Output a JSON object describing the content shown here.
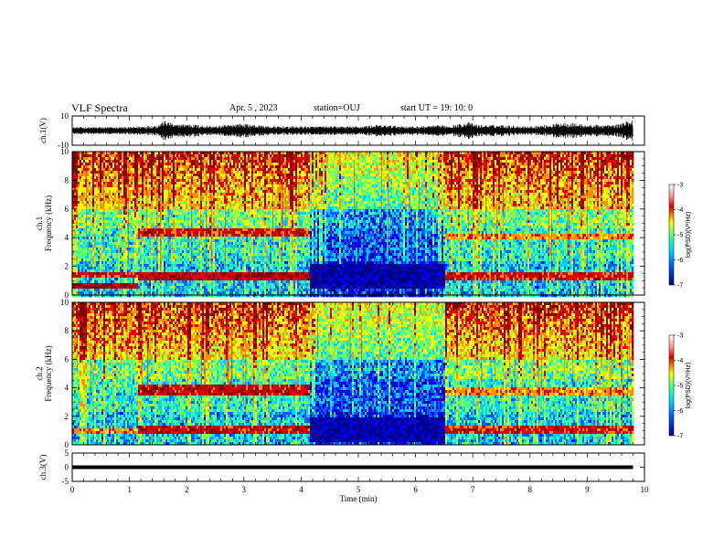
{
  "header": {
    "title": "VLF Spectra",
    "date": "Apr. 5 , 2023",
    "station": "station=OUJ",
    "start": "start UT =  19: 10: 0"
  },
  "colors": {
    "background": "#ffffff",
    "ink": "#000000",
    "colormap": [
      "#00008f",
      "#0000ff",
      "#0060ff",
      "#00d0ff",
      "#3cff9e",
      "#9cff40",
      "#ffff00",
      "#ff9000",
      "#e00000",
      "#800000"
    ]
  },
  "chart_data": [
    {
      "name": "ch1-waveform",
      "type": "line",
      "ylabel": "ch.1(V)",
      "xlim": [
        0,
        10
      ],
      "ylim": [
        -10,
        10
      ],
      "ytick_labels": [
        "10",
        "-10"
      ],
      "envelope": {
        "x": [
          0,
          0.5,
          1.0,
          1.5,
          1.6,
          1.7,
          1.8,
          2.0,
          2.2,
          2.5,
          2.9,
          3.2,
          3.5,
          4.0,
          4.5,
          5.0,
          5.3,
          6.0,
          6.7,
          6.9,
          7.1,
          7.5,
          8.0,
          8.3,
          8.6,
          9.0,
          9.5,
          9.8
        ],
        "amplitude": [
          2.5,
          2.5,
          2.5,
          4,
          7,
          6,
          4,
          5,
          4,
          3,
          5,
          4,
          3,
          3,
          3,
          3,
          4,
          3,
          4,
          6,
          4,
          4,
          3,
          4,
          6,
          4,
          4,
          8
        ]
      }
    },
    {
      "name": "ch1-spectrogram",
      "type": "heatmap",
      "ylabel": "ch.1\nFrequency (kHz)",
      "xlim": [
        0,
        10
      ],
      "ylim": [
        0,
        10
      ],
      "ytick_labels": [
        "0",
        "2",
        "4",
        "6",
        "8",
        "10"
      ],
      "colorbar": {
        "label": "log(PSD)(V²/Hz)",
        "tick_labels": [
          "-3",
          "-4",
          "-5",
          "-6",
          "-7"
        ],
        "range": [
          -7,
          -3
        ]
      },
      "bands": [
        {
          "t_start": 0,
          "t_end": 1.15,
          "f_low": 0.6,
          "f_high": 1.0,
          "level": -3.3
        },
        {
          "t_start": 0,
          "t_end": 1.15,
          "f_low": 1.3,
          "f_high": 1.6,
          "level": -3.6
        },
        {
          "t_start": 1.15,
          "t_end": 4.15,
          "f_low": 1.2,
          "f_high": 1.7,
          "level": -3.4
        },
        {
          "t_start": 1.15,
          "t_end": 4.15,
          "f_low": 4.2,
          "f_high": 4.7,
          "level": -3.6
        },
        {
          "t_start": 4.15,
          "t_end": 6.5,
          "f_low": 0.5,
          "f_high": 2.3,
          "level": -6.8
        },
        {
          "t_start": 6.5,
          "t_end": 9.8,
          "f_low": 1.2,
          "f_high": 1.7,
          "level": -3.6
        },
        {
          "t_start": 6.5,
          "t_end": 9.8,
          "f_low": 4.0,
          "f_high": 4.4,
          "level": -4.0
        }
      ]
    },
    {
      "name": "ch2-spectrogram",
      "type": "heatmap",
      "ylabel": "ch.2\nFrequency (kHz)",
      "xlim": [
        0,
        10
      ],
      "ylim": [
        0,
        10
      ],
      "ytick_labels": [
        "0",
        "2",
        "4",
        "6",
        "8",
        "10"
      ],
      "colorbar": {
        "label": "log(PSD)(V²/Hz)",
        "tick_labels": [
          "-3",
          "-4",
          "-5",
          "-6",
          "-7"
        ],
        "range": [
          -7,
          -3
        ]
      },
      "bands": [
        {
          "t_start": 0,
          "t_end": 1.15,
          "f_low": 0.9,
          "f_high": 1.3,
          "level": -4.0
        },
        {
          "t_start": 1.15,
          "t_end": 4.15,
          "f_low": 0.8,
          "f_high": 1.5,
          "level": -3.5
        },
        {
          "t_start": 1.15,
          "t_end": 4.15,
          "f_low": 3.6,
          "f_high": 4.4,
          "level": -3.5
        },
        {
          "t_start": 4.15,
          "t_end": 6.5,
          "f_low": 0.2,
          "f_high": 2.0,
          "level": -6.8
        },
        {
          "t_start": 6.5,
          "t_end": 9.8,
          "f_low": 0.8,
          "f_high": 1.5,
          "level": -3.6
        },
        {
          "t_start": 6.5,
          "t_end": 9.8,
          "f_low": 3.6,
          "f_high": 4.2,
          "level": -4.0
        }
      ]
    },
    {
      "name": "ch3-waveform",
      "type": "line",
      "ylabel": "ch.3(V)",
      "xlabel": "Time (min)",
      "xlim": [
        0,
        10
      ],
      "ylim": [
        -5,
        5
      ],
      "ytick_labels": [
        "5",
        "0",
        "-5"
      ],
      "xtick_labels": [
        "0",
        "1",
        "2",
        "3",
        "4",
        "5",
        "6",
        "7",
        "8",
        "9",
        "10"
      ],
      "series": [
        {
          "x": [
            0,
            9.8
          ],
          "y": [
            0,
            0
          ]
        }
      ]
    }
  ]
}
